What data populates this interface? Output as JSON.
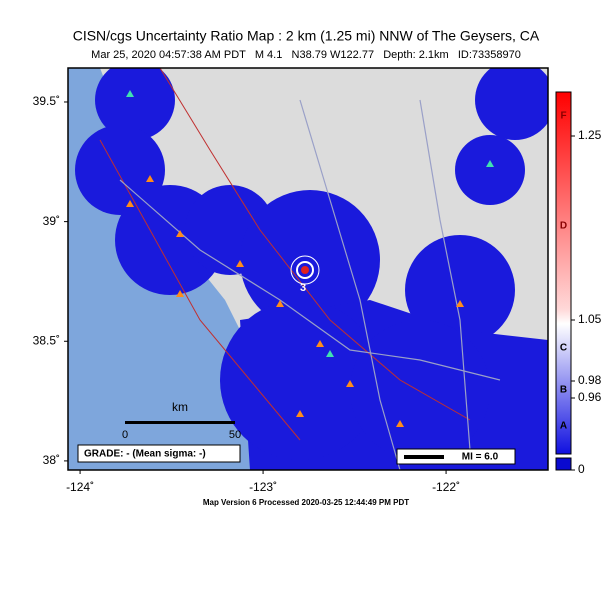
{
  "header": {
    "title": "CISN/cgs Uncertainty Ratio Map : 2 km (1.25 mi) NNW of The Geysers, CA",
    "subtitle": "Mar 25, 2020 04:57:38 AM PDT   M 4.1   N38.79 W122.77   Depth: 2.1km   ID:73358970"
  },
  "map": {
    "lat_range": [
      37.962,
      39.642
    ],
    "lon_range": [
      -124.066,
      -121.443
    ],
    "lat_ticks": [
      {
        "value": 39.5,
        "label": "39.5˚"
      },
      {
        "value": 39,
        "label": "39˚"
      },
      {
        "value": 38.5,
        "label": "38.5˚"
      },
      {
        "value": 38,
        "label": "38˚"
      }
    ],
    "lon_ticks": [
      {
        "value": -124,
        "label": "-124˚"
      },
      {
        "value": -123,
        "label": "-123˚"
      },
      {
        "value": -122,
        "label": "-122˚"
      }
    ],
    "epicenter_label": "3",
    "scale_bar": {
      "unit": "km",
      "start": "0",
      "end": "50"
    },
    "grade": "GRADE: - (Mean sigma: -)",
    "mi_legend": "MI = 6.0"
  },
  "colorbar": {
    "letters": [
      "F",
      "D",
      "C",
      "B",
      "A"
    ],
    "ticks": [
      {
        "value": 1.25,
        "label": "1.25"
      },
      {
        "value": 1.05,
        "label": "1.05"
      },
      {
        "value": 0.98,
        "label": "0.98"
      },
      {
        "value": 0.96,
        "label": "0.96"
      },
      {
        "value": 0,
        "label": "0"
      }
    ]
  },
  "footer": "Map Version 6 Processed 2020-03-25 12:44:49 PM PDT"
}
